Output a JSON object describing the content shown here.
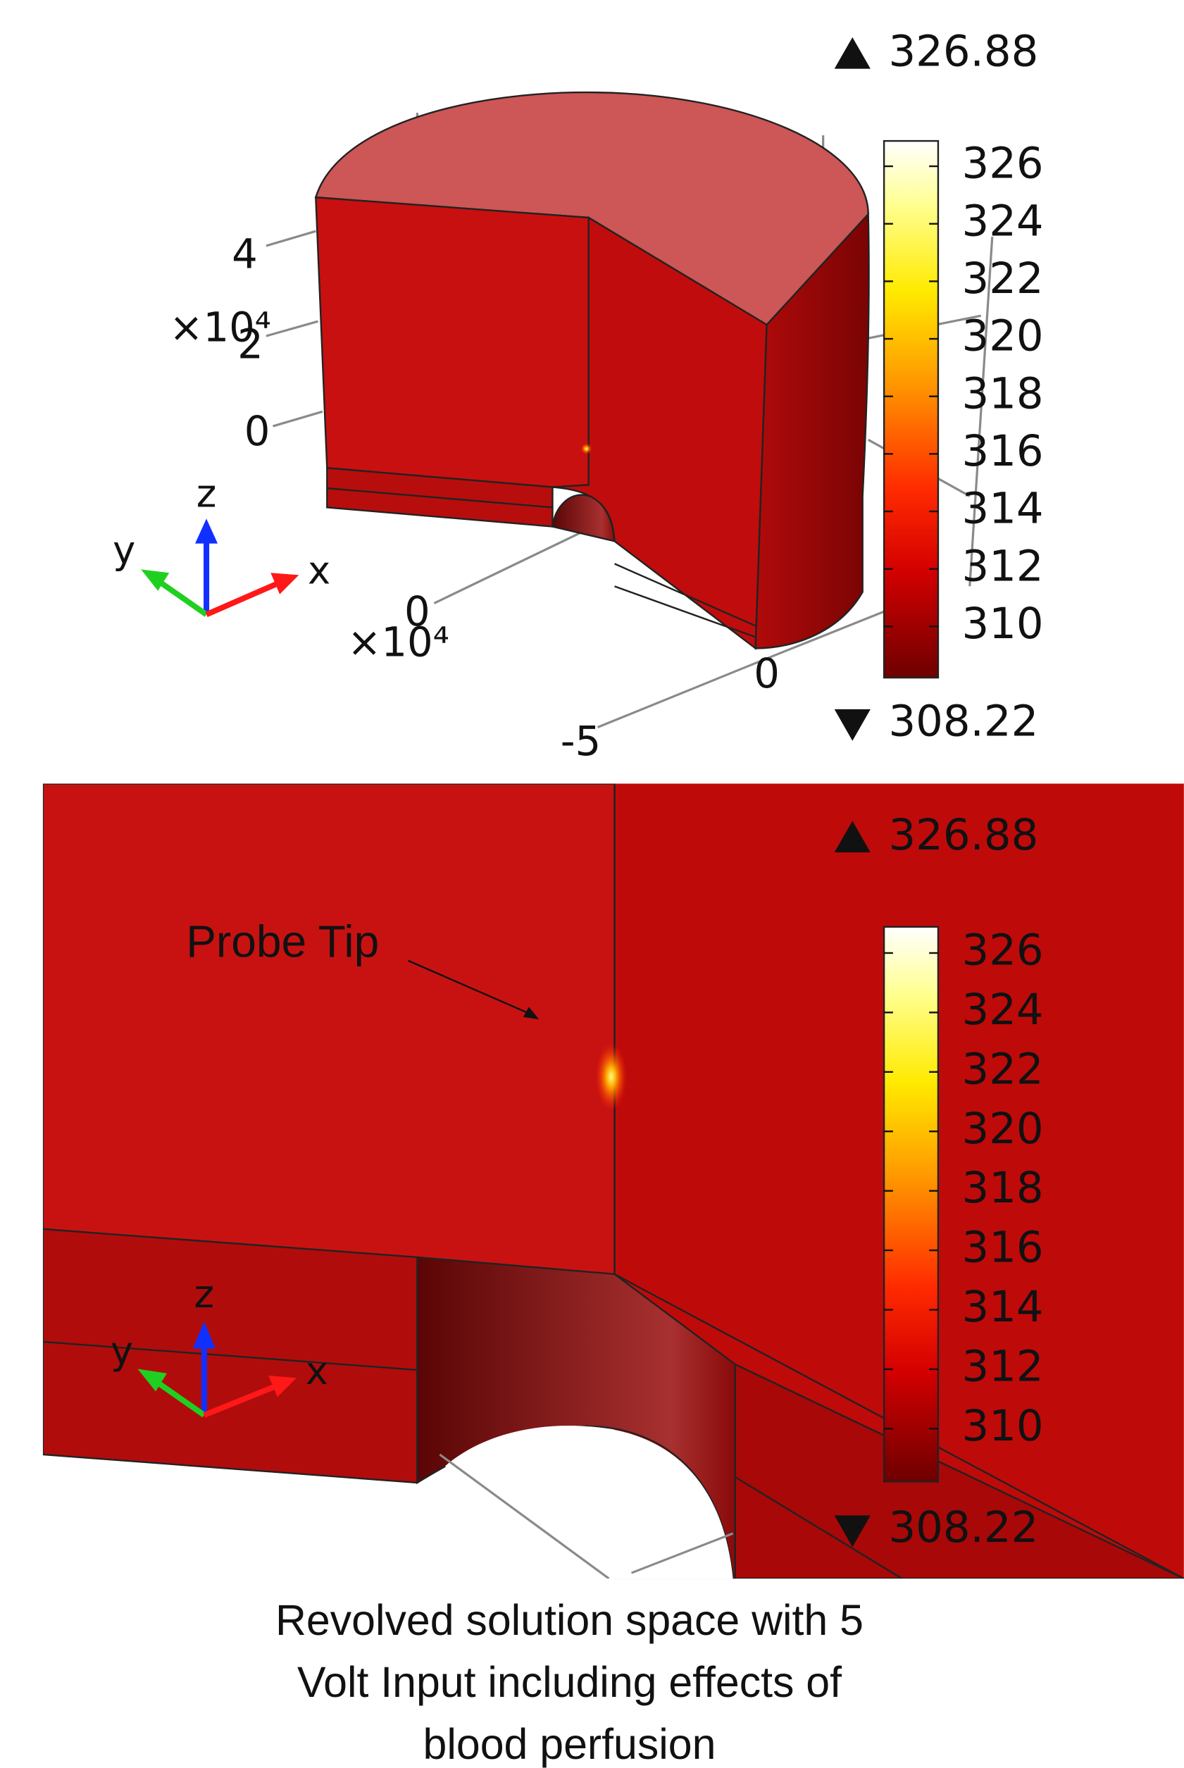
{
  "panels": [
    {
      "colorbar": {
        "max": 326.88,
        "min": 308.22,
        "ticks": [
          310,
          312,
          314,
          316,
          318,
          320,
          322,
          324,
          326
        ]
      },
      "axis_tick_labels": [
        "4",
        "2",
        "0",
        "0",
        "0",
        "-5"
      ],
      "exponent_labels": [
        "×10⁴",
        "×10⁴"
      ],
      "triad": {
        "x": "x",
        "y": "y",
        "z": "z"
      }
    },
    {
      "colorbar": {
        "max": 326.88,
        "min": 308.22,
        "ticks": [
          310,
          312,
          314,
          316,
          318,
          320,
          322,
          324,
          326
        ]
      },
      "triad": {
        "x": "x",
        "y": "y",
        "z": "z"
      },
      "annotation": "Probe Tip"
    }
  ],
  "caption": {
    "lines": [
      "Revolved solution space with 5",
      "Volt Input including effects of",
      "blood perfusion"
    ]
  }
}
